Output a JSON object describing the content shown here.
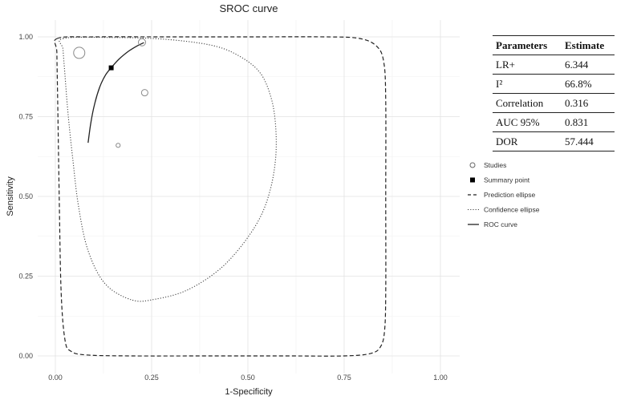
{
  "chart_data": {
    "type": "scatter",
    "title": "SROC curve",
    "xlabel": "1-Specificity",
    "ylabel": "Sensitivity",
    "xlim": [
      0,
      1
    ],
    "ylim": [
      0,
      1
    ],
    "x_ticks": [
      "0.00",
      "0.25",
      "0.50",
      "0.75",
      "1.00"
    ],
    "y_ticks": [
      "0.00",
      "0.25",
      "0.50",
      "0.75",
      "1.00"
    ],
    "grid": true,
    "legend_position": "right",
    "legend": [
      {
        "key": "studies",
        "label": "Studies"
      },
      {
        "key": "summary",
        "label": "Summary point"
      },
      {
        "key": "prediction",
        "label": "Prediction ellipse"
      },
      {
        "key": "confidence",
        "label": "Confidence ellipse"
      },
      {
        "key": "roc",
        "label": "ROC curve"
      }
    ],
    "studies": [
      {
        "x": 0.062,
        "y": 0.95,
        "weight": 1.0
      },
      {
        "x": 0.225,
        "y": 0.983,
        "weight": 0.55
      },
      {
        "x": 0.232,
        "y": 0.825,
        "weight": 0.45
      },
      {
        "x": 0.163,
        "y": 0.66,
        "weight": 0.2
      }
    ],
    "summary_point": {
      "x": 0.145,
      "y": 0.903
    },
    "roc_curve": [
      [
        0.085,
        0.668
      ],
      [
        0.092,
        0.73
      ],
      [
        0.102,
        0.79
      ],
      [
        0.115,
        0.842
      ],
      [
        0.13,
        0.88
      ],
      [
        0.145,
        0.903
      ],
      [
        0.165,
        0.93
      ],
      [
        0.19,
        0.955
      ],
      [
        0.21,
        0.97
      ],
      [
        0.23,
        0.982
      ]
    ],
    "prediction_ellipse": [
      [
        0.005,
        0.995
      ],
      [
        0.1,
        1.0
      ],
      [
        0.3,
        1.0
      ],
      [
        0.5,
        1.0
      ],
      [
        0.7,
        1.0
      ],
      [
        0.79,
        0.995
      ],
      [
        0.835,
        0.97
      ],
      [
        0.853,
        0.92
      ],
      [
        0.858,
        0.8
      ],
      [
        0.858,
        0.5
      ],
      [
        0.858,
        0.2
      ],
      [
        0.855,
        0.08
      ],
      [
        0.845,
        0.03
      ],
      [
        0.82,
        0.008
      ],
      [
        0.75,
        0.0
      ],
      [
        0.6,
        0.0
      ],
      [
        0.4,
        0.0
      ],
      [
        0.2,
        0.0
      ],
      [
        0.08,
        0.003
      ],
      [
        0.04,
        0.015
      ],
      [
        0.025,
        0.05
      ],
      [
        0.015,
        0.2
      ],
      [
        0.01,
        0.5
      ],
      [
        0.006,
        0.8
      ],
      [
        0.004,
        0.95
      ],
      [
        0.005,
        0.995
      ]
    ],
    "confidence_ellipse": [
      [
        0.02,
        0.995
      ],
      [
        0.15,
        0.998
      ],
      [
        0.28,
        0.993
      ],
      [
        0.4,
        0.975
      ],
      [
        0.47,
        0.945
      ],
      [
        0.53,
        0.89
      ],
      [
        0.56,
        0.81
      ],
      [
        0.572,
        0.72
      ],
      [
        0.572,
        0.62
      ],
      [
        0.558,
        0.52
      ],
      [
        0.53,
        0.43
      ],
      [
        0.48,
        0.34
      ],
      [
        0.42,
        0.265
      ],
      [
        0.34,
        0.205
      ],
      [
        0.26,
        0.178
      ],
      [
        0.2,
        0.175
      ],
      [
        0.13,
        0.225
      ],
      [
        0.085,
        0.33
      ],
      [
        0.06,
        0.47
      ],
      [
        0.045,
        0.62
      ],
      [
        0.033,
        0.76
      ],
      [
        0.025,
        0.88
      ],
      [
        0.02,
        0.96
      ],
      [
        0.02,
        0.995
      ]
    ]
  },
  "table": {
    "headers": [
      "Parameters",
      "Estimate"
    ],
    "rows": [
      {
        "param": "LR+",
        "estimate": "6.344"
      },
      {
        "param": "I²",
        "estimate": "66.8%"
      },
      {
        "param": "Correlation",
        "estimate": "0.316"
      },
      {
        "param": "AUC 95%",
        "estimate": "0.831"
      },
      {
        "param": "DOR",
        "estimate": "57.444"
      }
    ]
  }
}
